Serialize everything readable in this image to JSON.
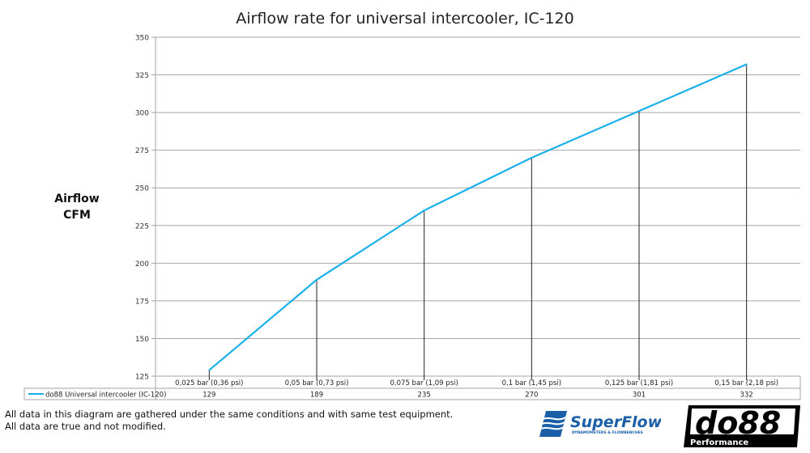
{
  "chart_data": {
    "type": "line",
    "title": "Airflow rate for universal intercooler, IC-120",
    "ylabel": [
      "Airflow",
      "CFM"
    ],
    "xlabel": "",
    "categories": [
      "0,025 bar (0,36 psi)",
      "0,05 bar (0,73 psi)",
      "0,075 bar (1,09 psi)",
      "0,1 bar (1,45 psi)",
      "0,125 bar (1,81 psi)",
      "0,15 bar (2,18 psi)"
    ],
    "series": [
      {
        "name": "do88 Universal intercooler (IC-120)",
        "values": [
          129,
          189,
          235,
          270,
          301,
          332
        ],
        "color": "#1ab0ec"
      }
    ],
    "ylim": [
      125,
      350
    ],
    "yticks": [
      125,
      150,
      175,
      200,
      225,
      250,
      275,
      300,
      325,
      350
    ],
    "grid": "horizontal",
    "drop_lines": true,
    "data_table": true
  },
  "notes": [
    "All data in this diagram are gathered under the same conditions and with same test equipment.",
    "All data are true and not modified."
  ],
  "logos": {
    "superflow": "SuperFlow",
    "superflow_sub": "DYNAMOMETERS & FLOWBENCHES",
    "do88": "do88",
    "do88_sub": "Performance"
  }
}
